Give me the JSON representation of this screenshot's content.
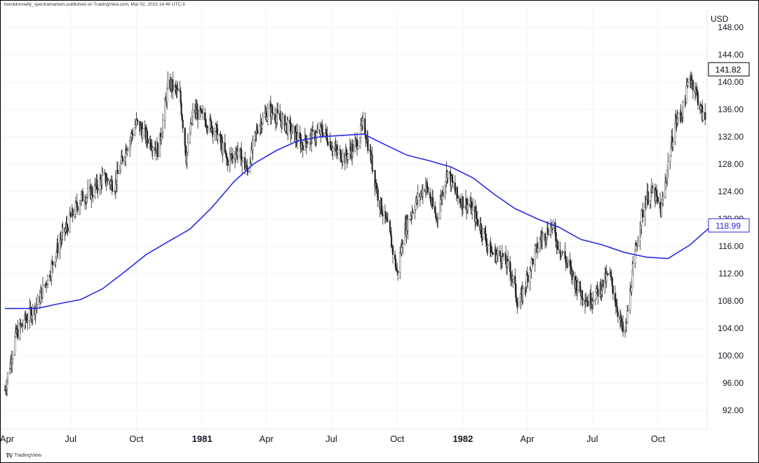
{
  "attribution": "brentdonnelly_spectramarkets published on TradingView.com, Mar 02, 2023 14:49 UTC-5",
  "brand": "TradingView",
  "chart_data": {
    "type": "candlestick",
    "currency": "USD",
    "price_axis": {
      "ticks": [
        "148.00",
        "144.00",
        "140.00",
        "136.00",
        "132.00",
        "128.00",
        "124.00",
        "120.00",
        "116.00",
        "112.00",
        "108.00",
        "104.00",
        "100.00",
        "96.00",
        "92.00"
      ],
      "range": [
        88.0,
        150.0
      ]
    },
    "time_axis": {
      "ticks": [
        {
          "label": "Apr",
          "bold": false,
          "date": "1980-04"
        },
        {
          "label": "Jul",
          "bold": false,
          "date": "1980-07"
        },
        {
          "label": "Oct",
          "bold": false,
          "date": "1980-10"
        },
        {
          "label": "1981",
          "bold": true,
          "date": "1981-01"
        },
        {
          "label": "Apr",
          "bold": false,
          "date": "1981-04"
        },
        {
          "label": "Jul",
          "bold": false,
          "date": "1981-07"
        },
        {
          "label": "Oct",
          "bold": false,
          "date": "1981-10"
        },
        {
          "label": "1982",
          "bold": true,
          "date": "1982-01"
        },
        {
          "label": "Apr",
          "bold": false,
          "date": "1982-04"
        },
        {
          "label": "Jul",
          "bold": false,
          "date": "1982-07"
        },
        {
          "label": "Oct",
          "bold": false,
          "date": "1982-10"
        }
      ]
    },
    "last_price": {
      "label": "141.82",
      "value": 141.82,
      "color": "#000000"
    },
    "moving_average": {
      "label": "118.99",
      "value": 118.99,
      "color": "#2929e8",
      "points": [
        [
          "1980-03-31",
          106.9
        ],
        [
          "1980-05-15",
          106.9
        ],
        [
          "1980-06-15",
          107.6
        ],
        [
          "1980-07-15",
          108.2
        ],
        [
          "1980-08-15",
          109.8
        ],
        [
          "1980-09-15",
          112.3
        ],
        [
          "1980-10-15",
          114.8
        ],
        [
          "1980-11-15",
          116.7
        ],
        [
          "1980-12-15",
          118.5
        ],
        [
          "1981-01-15",
          121.7
        ],
        [
          "1981-02-15",
          125.5
        ],
        [
          "1981-03-15",
          128.1
        ],
        [
          "1981-04-15",
          130.0
        ],
        [
          "1981-05-15",
          131.4
        ],
        [
          "1981-06-15",
          132.0
        ],
        [
          "1981-07-15",
          132.2
        ],
        [
          "1981-08-15",
          132.4
        ],
        [
          "1981-09-15",
          130.8
        ],
        [
          "1981-10-15",
          129.3
        ],
        [
          "1981-11-15",
          128.5
        ],
        [
          "1981-12-15",
          127.6
        ],
        [
          "1982-01-15",
          126.0
        ],
        [
          "1982-02-15",
          123.5
        ],
        [
          "1982-03-15",
          121.5
        ],
        [
          "1982-04-15",
          120.0
        ],
        [
          "1982-05-15",
          118.8
        ],
        [
          "1982-06-15",
          117.0
        ],
        [
          "1982-07-15",
          116.2
        ],
        [
          "1982-08-15",
          115.1
        ],
        [
          "1982-09-15",
          114.4
        ],
        [
          "1982-10-15",
          114.2
        ],
        [
          "1982-11-15",
          116.2
        ],
        [
          "1982-12-15",
          118.99
        ]
      ]
    },
    "price_path": [
      [
        "1980-03-31",
        95.0
      ],
      [
        "1980-04-15",
        103.0
      ],
      [
        "1980-05-01",
        105.5
      ],
      [
        "1980-05-15",
        107.5
      ],
      [
        "1980-06-01",
        112.0
      ],
      [
        "1980-06-15",
        116.5
      ],
      [
        "1980-07-01",
        120.0
      ],
      [
        "1980-07-15",
        123.0
      ],
      [
        "1980-08-01",
        124.0
      ],
      [
        "1980-08-15",
        126.0
      ],
      [
        "1980-09-01",
        125.0
      ],
      [
        "1980-09-15",
        130.0
      ],
      [
        "1980-10-01",
        134.0
      ],
      [
        "1980-10-15",
        132.0
      ],
      [
        "1980-11-01",
        130.0
      ],
      [
        "1980-11-15",
        140.0
      ],
      [
        "1980-12-01",
        138.0
      ],
      [
        "1980-12-10",
        129.0
      ],
      [
        "1980-12-20",
        136.0
      ],
      [
        "1981-01-05",
        134.5
      ],
      [
        "1981-01-20",
        133.0
      ],
      [
        "1981-02-05",
        128.5
      ],
      [
        "1981-02-20",
        130.0
      ],
      [
        "1981-03-05",
        127.0
      ],
      [
        "1981-03-20",
        133.5
      ],
      [
        "1981-04-05",
        136.0
      ],
      [
        "1981-04-20",
        134.5
      ],
      [
        "1981-05-05",
        133.0
      ],
      [
        "1981-05-20",
        131.0
      ],
      [
        "1981-06-05",
        132.0
      ],
      [
        "1981-06-20",
        133.0
      ],
      [
        "1981-07-05",
        130.0
      ],
      [
        "1981-07-20",
        129.0
      ],
      [
        "1981-08-05",
        131.0
      ],
      [
        "1981-08-15",
        134.0
      ],
      [
        "1981-08-25",
        129.0
      ],
      [
        "1981-09-05",
        123.0
      ],
      [
        "1981-09-20",
        118.0
      ],
      [
        "1981-10-01",
        112.0
      ],
      [
        "1981-10-10",
        118.0
      ],
      [
        "1981-10-25",
        122.0
      ],
      [
        "1981-11-10",
        125.0
      ],
      [
        "1981-11-25",
        120.0
      ],
      [
        "1981-12-10",
        127.0
      ],
      [
        "1981-12-25",
        123.0
      ],
      [
        "1982-01-10",
        122.0
      ],
      [
        "1982-01-25",
        119.0
      ],
      [
        "1982-02-10",
        115.0
      ],
      [
        "1982-02-25",
        114.5
      ],
      [
        "1982-03-10",
        112.0
      ],
      [
        "1982-03-20",
        107.0
      ],
      [
        "1982-04-05",
        113.0
      ],
      [
        "1982-04-20",
        117.0
      ],
      [
        "1982-05-05",
        119.0
      ],
      [
        "1982-05-15",
        116.0
      ],
      [
        "1982-05-25",
        114.0
      ],
      [
        "1982-06-10",
        110.0
      ],
      [
        "1982-06-25",
        108.0
      ],
      [
        "1982-07-10",
        109.5
      ],
      [
        "1982-07-25",
        112.0
      ],
      [
        "1982-08-05",
        107.0
      ],
      [
        "1982-08-15",
        102.5
      ],
      [
        "1982-08-25",
        111.0
      ],
      [
        "1982-09-05",
        119.0
      ],
      [
        "1982-09-15",
        123.0
      ],
      [
        "1982-09-25",
        124.0
      ],
      [
        "1982-10-05",
        121.0
      ],
      [
        "1982-10-15",
        128.0
      ],
      [
        "1982-10-25",
        134.0
      ],
      [
        "1982-11-05",
        136.0
      ],
      [
        "1982-11-15",
        141.0
      ],
      [
        "1982-11-25",
        138.0
      ],
      [
        "1982-12-05",
        134.0
      ],
      [
        "1982-12-15",
        139.0
      ],
      [
        "1982-12-31",
        141.82
      ]
    ]
  }
}
